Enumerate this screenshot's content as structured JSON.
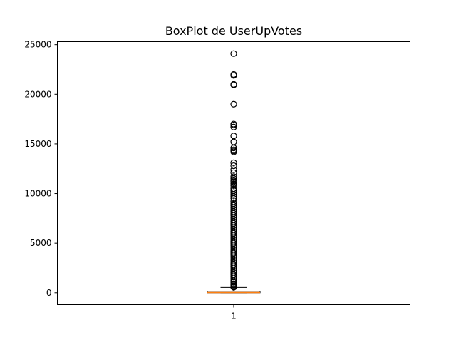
{
  "chart_data": {
    "type": "boxplot",
    "title": "BoxPlot de UserUpVotes",
    "xlabel": "",
    "ylabel": "",
    "categories": [
      "1"
    ],
    "ylim": [
      -1200,
      25300
    ],
    "yticks": [
      0,
      5000,
      10000,
      15000,
      20000,
      25000
    ],
    "grid": false,
    "colors": {
      "median": "#ff7f0e",
      "box": "#000000",
      "outlier": "#000000"
    },
    "box": {
      "whisker_low": 0,
      "q1": 0,
      "median": 20,
      "q3": 150,
      "whisker_high": 530,
      "outliers": [
        24100,
        22000,
        21900,
        21000,
        20950,
        19000,
        17000,
        16900,
        16700,
        15800,
        15200,
        14600,
        14400,
        14300,
        14200,
        13100,
        12800,
        12400,
        12100,
        11700,
        11500,
        11300,
        11200,
        11000,
        10800,
        10500,
        10300,
        10100,
        9900,
        9700,
        9500,
        9200,
        9000,
        8800,
        8600,
        8400,
        8200,
        8000,
        7800,
        7600,
        7400,
        7200,
        7000,
        6800,
        6600,
        6400,
        6200,
        6000,
        5800,
        5600,
        5400,
        5200,
        5000,
        4800,
        4600,
        4400,
        4200,
        4000,
        3800,
        3600,
        3400,
        3200,
        3000,
        2800,
        2600,
        2400,
        2200,
        2000,
        1800,
        1600,
        1400,
        1200,
        1050,
        900,
        800,
        700,
        620,
        560
      ]
    }
  }
}
